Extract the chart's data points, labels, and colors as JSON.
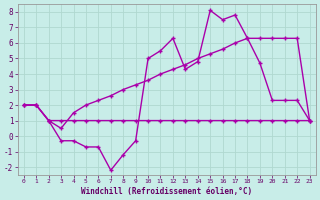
{
  "title": "",
  "xlabel": "Windchill (Refroidissement éolien,°C)",
  "ylabel": "",
  "background_color": "#c8ede8",
  "grid_color": "#b0d8d0",
  "line_color": "#aa00aa",
  "xlim": [
    -0.5,
    23.5
  ],
  "ylim": [
    -2.5,
    8.5
  ],
  "xticks": [
    0,
    1,
    2,
    3,
    4,
    5,
    6,
    7,
    8,
    9,
    10,
    11,
    12,
    13,
    14,
    15,
    16,
    17,
    18,
    19,
    20,
    21,
    22,
    23
  ],
  "yticks": [
    -2,
    -1,
    0,
    1,
    2,
    3,
    4,
    5,
    6,
    7,
    8
  ],
  "line1_x": [
    0,
    1,
    2,
    3,
    4,
    5,
    6,
    7,
    8,
    9,
    10,
    11,
    12,
    13,
    14,
    15,
    16,
    17,
    18,
    19,
    20,
    21,
    22,
    23
  ],
  "line1_y": [
    2.0,
    2.0,
    1.0,
    1.0,
    1.0,
    1.0,
    1.0,
    1.0,
    1.0,
    1.0,
    1.0,
    1.0,
    1.0,
    1.0,
    1.0,
    1.0,
    1.0,
    1.0,
    1.0,
    1.0,
    1.0,
    1.0,
    1.0,
    1.0
  ],
  "line2_x": [
    0,
    1,
    2,
    3,
    4,
    5,
    6,
    7,
    8,
    9,
    10,
    11,
    12,
    13,
    14,
    15,
    16,
    17,
    18,
    19,
    20,
    21,
    22,
    23
  ],
  "line2_y": [
    2.0,
    2.0,
    1.0,
    0.5,
    1.5,
    2.0,
    2.3,
    2.6,
    3.0,
    3.3,
    3.6,
    4.0,
    4.3,
    4.6,
    5.0,
    5.3,
    5.6,
    6.0,
    6.3,
    6.3,
    6.3,
    6.3,
    6.3,
    1.0
  ],
  "line3_x": [
    0,
    1,
    2,
    3,
    4,
    5,
    6,
    7,
    8,
    9,
    10,
    11,
    12,
    13,
    14,
    15,
    16,
    17,
    18,
    19,
    20,
    21,
    22,
    23
  ],
  "line3_y": [
    2.0,
    2.0,
    1.0,
    -0.3,
    -0.3,
    -0.7,
    -0.7,
    -2.2,
    -1.2,
    -0.3,
    5.0,
    5.5,
    6.3,
    4.3,
    4.8,
    8.1,
    7.5,
    7.8,
    6.3,
    4.7,
    2.3,
    2.3,
    2.3,
    1.0
  ]
}
